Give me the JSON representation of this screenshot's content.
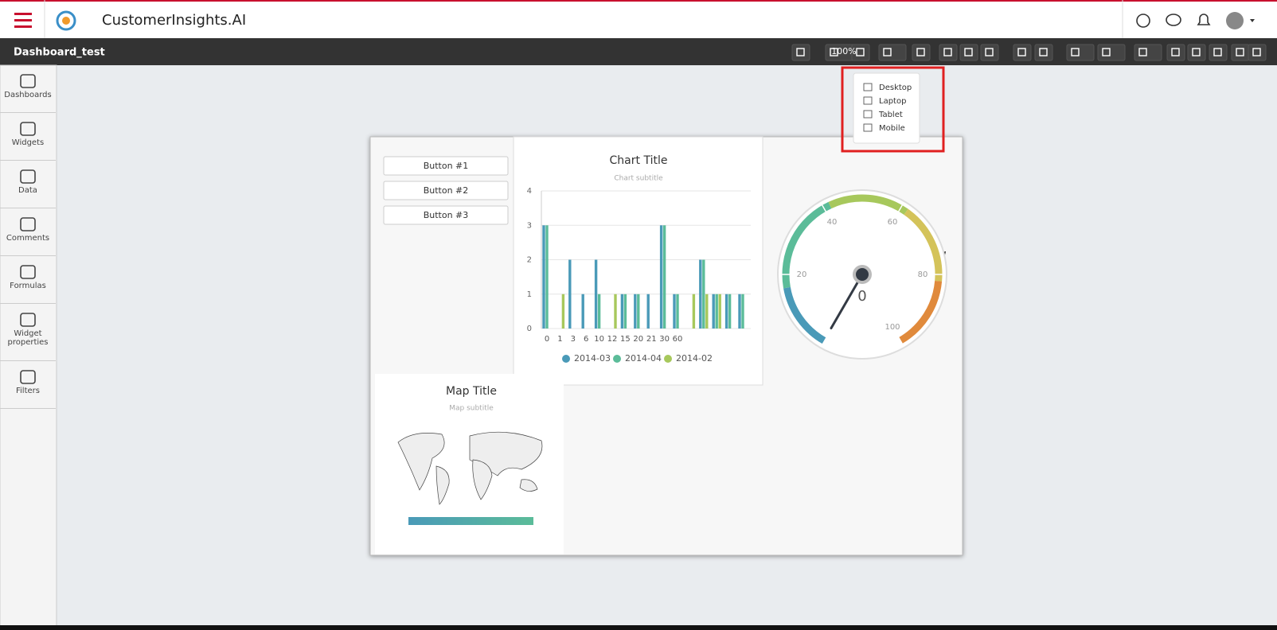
{
  "header": {
    "app_name": "CustomerInsights.AI"
  },
  "toolbar": {
    "dashboard_name": "Dashboard_test",
    "zoom": "100%"
  },
  "sidebar": [
    "Dashboards",
    "Widgets",
    "Data",
    "Comments",
    "Formulas",
    "Widget properties",
    "Filters"
  ],
  "device_menu": [
    "Desktop",
    "Laptop",
    "Tablet",
    "Mobile"
  ],
  "buttons": [
    "Button #1",
    "Button #2",
    "Button #3"
  ],
  "chart_data": [
    {
      "type": "bar",
      "title": "Chart Title",
      "subtitle": "Chart subtitle",
      "categories": [
        "0",
        "1",
        "3",
        "6",
        "10",
        "12",
        "15",
        "20",
        "21",
        "30",
        "60",
        null,
        null,
        null,
        null,
        null
      ],
      "series": [
        {
          "name": "2014-03",
          "color": "#4a9ab8",
          "values": [
            3,
            0,
            2,
            1,
            2,
            0,
            1,
            1,
            1,
            3,
            1,
            0,
            2,
            1,
            1,
            1
          ]
        },
        {
          "name": "2014-04",
          "color": "#5bbc99",
          "values": [
            3,
            0,
            0,
            0,
            1,
            0,
            1,
            1,
            0,
            3,
            1,
            0,
            2,
            1,
            1,
            1
          ]
        },
        {
          "name": "2014-02",
          "color": "#a7c85c",
          "values": [
            0,
            1,
            0,
            0,
            0,
            1,
            0,
            0,
            0,
            0,
            0,
            1,
            1,
            1,
            0,
            0
          ]
        }
      ],
      "ylim": [
        0,
        4
      ],
      "yticks": [
        0,
        1,
        2,
        3,
        4
      ],
      "grid": true
    },
    {
      "type": "gauge",
      "value": 0,
      "ylim": [
        0,
        100
      ],
      "yticks": [
        20,
        40,
        60,
        80,
        100
      ]
    }
  ],
  "map": {
    "title": "Map Title",
    "subtitle": "Map subtitle"
  }
}
